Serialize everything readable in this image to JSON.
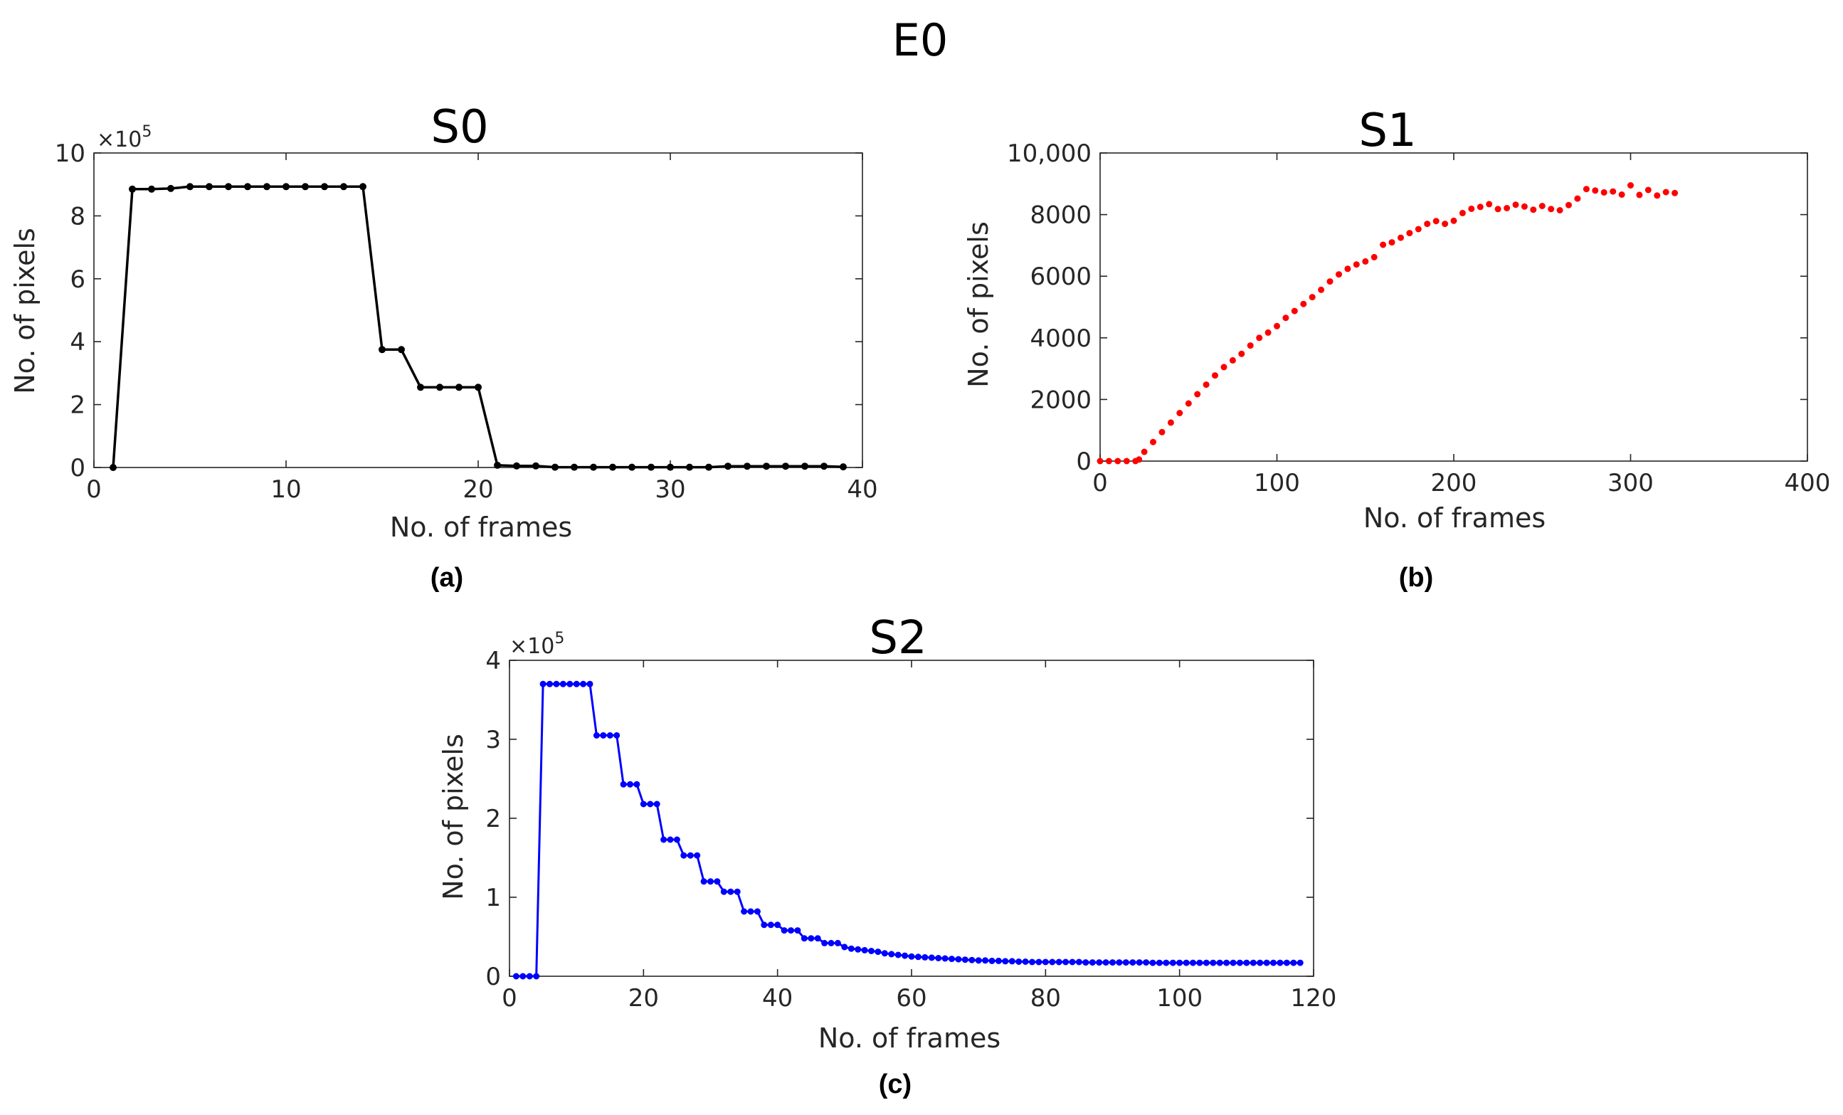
{
  "figure_title": "E0",
  "chart_data": [
    {
      "id": "a",
      "type": "line",
      "title": "S0",
      "caption": "(a)",
      "xlabel": "No. of frames",
      "ylabel": "No. of pixels",
      "multiplier_base": "×10",
      "multiplier_exp": "5",
      "xlim": [
        0,
        40
      ],
      "ylim": [
        0,
        10
      ],
      "xticks": [
        0,
        10,
        20,
        30,
        40
      ],
      "xtick_labels": [
        "0",
        "10",
        "20",
        "30",
        "40"
      ],
      "yticks": [
        0,
        2,
        4,
        6,
        8,
        10
      ],
      "ytick_labels": [
        "0",
        "2",
        "4",
        "6",
        "8",
        "10"
      ],
      "color": "#000000",
      "x": [
        1,
        2,
        3,
        4,
        5,
        6,
        7,
        8,
        9,
        10,
        11,
        12,
        13,
        14,
        15,
        16,
        17,
        18,
        19,
        20,
        21,
        22,
        23,
        24,
        25,
        26,
        27,
        28,
        29,
        30,
        31,
        32,
        33,
        34,
        35,
        36,
        37,
        38,
        39
      ],
      "y": [
        0,
        8.85,
        8.85,
        8.87,
        8.93,
        8.93,
        8.93,
        8.93,
        8.93,
        8.93,
        8.93,
        8.93,
        8.93,
        8.93,
        3.75,
        3.75,
        2.55,
        2.55,
        2.55,
        2.55,
        0.07,
        0.05,
        0.05,
        0.01,
        0.01,
        0.01,
        0.01,
        0.01,
        0.01,
        0.01,
        0.01,
        0.01,
        0.04,
        0.04,
        0.04,
        0.04,
        0.04,
        0.04,
        0.02
      ]
    },
    {
      "id": "b",
      "type": "scatter",
      "title": "S1",
      "caption": "(b)",
      "xlabel": "No. of frames",
      "ylabel": "No. of pixels",
      "xlim": [
        0,
        400
      ],
      "ylim": [
        0,
        10000
      ],
      "xticks": [
        0,
        100,
        200,
        300,
        400
      ],
      "xtick_labels": [
        "0",
        "100",
        "200",
        "300",
        "400"
      ],
      "yticks": [
        0,
        2000,
        4000,
        6000,
        8000,
        10000
      ],
      "ytick_labels": [
        "0",
        "2000",
        "4000",
        "6000",
        "8000",
        "10,000"
      ],
      "color": "#ff0000",
      "x": [
        0,
        5,
        10,
        15,
        20,
        22,
        25,
        30,
        35,
        40,
        45,
        50,
        55,
        60,
        65,
        70,
        75,
        80,
        85,
        90,
        95,
        100,
        105,
        110,
        115,
        120,
        125,
        130,
        135,
        140,
        145,
        150,
        155,
        160,
        165,
        170,
        175,
        180,
        185,
        190,
        195,
        200,
        205,
        210,
        215,
        220,
        225,
        230,
        235,
        240,
        245,
        250,
        255,
        260,
        265,
        270,
        275,
        280,
        285,
        290,
        295,
        300,
        305,
        310,
        315,
        320,
        325
      ],
      "y": [
        0,
        0,
        0,
        0,
        0,
        50,
        300,
        620,
        940,
        1250,
        1560,
        1870,
        2170,
        2480,
        2780,
        3050,
        3270,
        3480,
        3750,
        4000,
        4170,
        4380,
        4650,
        4870,
        5100,
        5320,
        5560,
        5830,
        6060,
        6240,
        6380,
        6480,
        6620,
        7020,
        7100,
        7250,
        7400,
        7530,
        7700,
        7790,
        7700,
        7800,
        8050,
        8190,
        8250,
        8340,
        8180,
        8210,
        8320,
        8260,
        8160,
        8280,
        8180,
        8140,
        8310,
        8520,
        8830,
        8780,
        8720,
        8750,
        8650,
        8950,
        8640,
        8800,
        8620,
        8730,
        8700
      ]
    },
    {
      "id": "c",
      "type": "line",
      "title": "S2",
      "caption": "(c)",
      "xlabel": "No. of frames",
      "ylabel": "No. of pixels",
      "multiplier_base": "×10",
      "multiplier_exp": "5",
      "xlim": [
        0,
        120
      ],
      "ylim": [
        0,
        4
      ],
      "xticks": [
        0,
        20,
        40,
        60,
        80,
        100,
        120
      ],
      "xtick_labels": [
        "0",
        "20",
        "40",
        "60",
        "80",
        "100",
        "120"
      ],
      "yticks": [
        0,
        1,
        2,
        3,
        4
      ],
      "ytick_labels": [
        "0",
        "1",
        "2",
        "3",
        "4"
      ],
      "color": "#0000ff",
      "x": [
        1,
        2,
        3,
        4,
        5,
        6,
        7,
        8,
        9,
        10,
        11,
        12,
        13,
        14,
        15,
        16,
        17,
        18,
        19,
        20,
        21,
        22,
        23,
        24,
        25,
        26,
        27,
        28,
        29,
        30,
        31,
        32,
        33,
        34,
        35,
        36,
        37,
        38,
        39,
        40,
        41,
        42,
        43,
        44,
        45,
        46,
        47,
        48,
        49,
        50,
        51,
        52,
        53,
        54,
        55,
        56,
        57,
        58,
        59,
        60,
        61,
        62,
        63,
        64,
        65,
        66,
        67,
        68,
        69,
        70,
        71,
        72,
        73,
        74,
        75,
        76,
        77,
        78,
        79,
        80,
        81,
        82,
        83,
        84,
        85,
        86,
        87,
        88,
        89,
        90,
        91,
        92,
        93,
        94,
        95,
        96,
        97,
        98,
        99,
        100,
        101,
        102,
        103,
        104,
        105,
        106,
        107,
        108,
        109,
        110,
        111,
        112,
        113,
        114,
        115,
        116,
        117,
        118
      ],
      "y": [
        0,
        0,
        0,
        0,
        3.7,
        3.7,
        3.7,
        3.7,
        3.7,
        3.7,
        3.7,
        3.7,
        3.05,
        3.05,
        3.05,
        3.05,
        2.43,
        2.43,
        2.43,
        2.18,
        2.18,
        2.18,
        1.73,
        1.73,
        1.73,
        1.53,
        1.53,
        1.53,
        1.2,
        1.2,
        1.2,
        1.07,
        1.07,
        1.07,
        0.82,
        0.82,
        0.82,
        0.65,
        0.65,
        0.65,
        0.58,
        0.58,
        0.58,
        0.48,
        0.48,
        0.48,
        0.42,
        0.42,
        0.42,
        0.37,
        0.35,
        0.34,
        0.33,
        0.32,
        0.31,
        0.29,
        0.28,
        0.27,
        0.26,
        0.25,
        0.245,
        0.24,
        0.235,
        0.23,
        0.225,
        0.22,
        0.215,
        0.21,
        0.205,
        0.2,
        0.2,
        0.195,
        0.195,
        0.19,
        0.19,
        0.185,
        0.185,
        0.18,
        0.18,
        0.18,
        0.18,
        0.18,
        0.18,
        0.18,
        0.18,
        0.175,
        0.175,
        0.175,
        0.175,
        0.175,
        0.175,
        0.175,
        0.175,
        0.175,
        0.175,
        0.17,
        0.17,
        0.17,
        0.17,
        0.17,
        0.17,
        0.17,
        0.17,
        0.17,
        0.17,
        0.17,
        0.17,
        0.17,
        0.17,
        0.17,
        0.17,
        0.17,
        0.17,
        0.17,
        0.17,
        0.17,
        0.17,
        0.17
      ]
    }
  ]
}
